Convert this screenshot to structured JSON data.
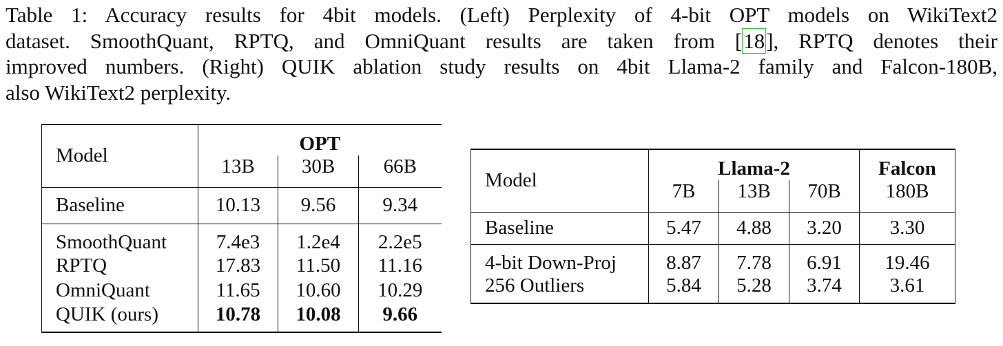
{
  "caption": {
    "line1": "Table 1: Accuracy results for 4bit models. (Left) Perplexity of 4-bit OPT models on WikiText2",
    "line2_before": "dataset. SmoothQuant, RPTQ, and OmniQuant results are taken from [",
    "citation": "18",
    "line2_after": "], RPTQ denotes their",
    "line3": "improved numbers. (Right) QUIK ablation study results on 4bit Llama-2 family and Falcon-180B,",
    "line4": "also WikiText2 perplexity."
  },
  "left_table": {
    "model_header": "Model",
    "groups": [
      {
        "label": "OPT",
        "columns": [
          "13B",
          "30B",
          "66B"
        ]
      }
    ],
    "baseline": {
      "label": "Baseline",
      "values": [
        "10.13",
        "9.56",
        "9.34"
      ]
    },
    "methods": [
      {
        "label": "SmoothQuant",
        "values": [
          "7.4e3",
          "1.2e4",
          "2.2e5"
        ]
      },
      {
        "label": "RPTQ",
        "values": [
          "17.83",
          "11.50",
          "11.16"
        ]
      },
      {
        "label": "OmniQuant",
        "values": [
          "11.65",
          "10.60",
          "10.29"
        ]
      },
      {
        "label": "QUIK (ours)",
        "values": [
          "10.78",
          "10.08",
          "9.66"
        ],
        "bold_values": true
      }
    ]
  },
  "right_table": {
    "model_header": "Model",
    "groups": [
      {
        "label": "Llama-2",
        "columns": [
          "7B",
          "13B",
          "70B"
        ]
      },
      {
        "label": "Falcon",
        "columns": [
          "180B"
        ]
      }
    ],
    "baseline": {
      "label": "Baseline",
      "values": [
        "5.47",
        "4.88",
        "3.20",
        "3.30"
      ]
    },
    "methods": [
      {
        "label": "4-bit Down-Proj",
        "values": [
          "8.87",
          "7.78",
          "6.91",
          "19.46"
        ]
      },
      {
        "label": "256 Outliers",
        "values": [
          "5.84",
          "5.28",
          "3.74",
          "3.61"
        ]
      }
    ]
  }
}
